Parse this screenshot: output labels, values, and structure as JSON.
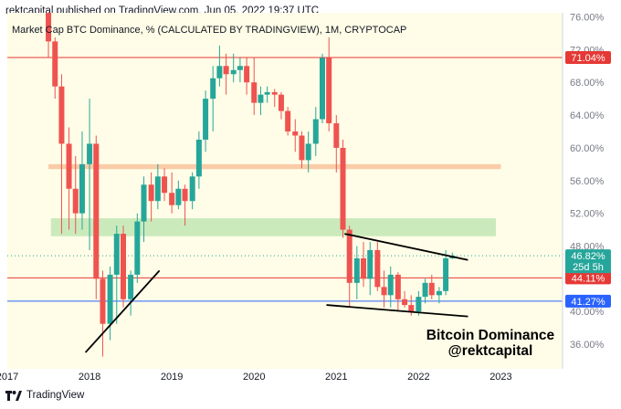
{
  "header": {
    "publisher_line": "rektcapital published on TradingView.com, Jun 05, 2022 19:37 UTC"
  },
  "footer": {
    "brand": "TradingView",
    "logo_icon": "tradingview-logo-icon"
  },
  "colors": {
    "up": "#26a69a",
    "down": "#ef5350",
    "bg": "#fffde7",
    "red_line": "#e53935",
    "blue_line": "#2962ff",
    "orange_zone": "#f8c6a0",
    "green_zone": "#c5e8b7",
    "price_green": "#26a69a"
  },
  "chart_data": {
    "type": "candlestick",
    "title": "Market Cap BTC Dominance, % (CALCULATED BY TRADINGVIEW), 1M, CRYPTOCAP",
    "annotation": [
      "Bitcoin Dominance",
      "@rektcapital"
    ],
    "x_ticks": [
      "2017",
      "2018",
      "2019",
      "2020",
      "2021",
      "2022",
      "2023"
    ],
    "x_tick_t": [
      2017.0,
      2018.0,
      2019.0,
      2020.0,
      2021.0,
      2022.0,
      2023.0
    ],
    "x_range": [
      2017.0,
      2023.75
    ],
    "y_ticks": [
      36,
      40,
      44,
      48,
      52,
      56,
      60,
      64,
      68,
      72,
      76
    ],
    "y_tick_labels": [
      "36.00%",
      "40.00%",
      "44.00%",
      "48.00%",
      "52.00%",
      "56.00%",
      "60.00%",
      "64.00%",
      "68.00%",
      "72.00%",
      "76.00%"
    ],
    "y_range": [
      33.0,
      76.5
    ],
    "horizontal_lines": [
      {
        "name": "resistance-71",
        "value": 71.04,
        "label": "71.04%",
        "color": "red"
      },
      {
        "name": "level-44",
        "value": 44.11,
        "label": "44.11%",
        "color": "red"
      },
      {
        "name": "support-41",
        "value": 41.27,
        "label": "41.27%",
        "color": "blue"
      }
    ],
    "zones": [
      {
        "name": "orange-zone",
        "from": 57.4,
        "to": 58.0,
        "color": "orange"
      },
      {
        "name": "green-zone",
        "from": 49.2,
        "to": 51.4,
        "color": "green"
      }
    ],
    "trendlines": [
      {
        "name": "support-trendline-2018",
        "t1": 2017.95,
        "v1": 35.0,
        "t2": 2018.85,
        "v2": 45.0
      },
      {
        "name": "upper-wedge-line",
        "t1": 2021.1,
        "v1": 49.5,
        "t2": 2022.6,
        "v2": 46.3
      },
      {
        "name": "lower-wedge-line",
        "t1": 2020.88,
        "v1": 40.8,
        "t2": 2022.6,
        "v2": 39.4
      }
    ],
    "last_price": {
      "value": 46.82,
      "label": "46.82%",
      "countdown": "25d 5h"
    },
    "candles": [
      {
        "t": 2017.5,
        "o": 82.0,
        "h": 85.0,
        "l": 71.0,
        "c": 73.0
      },
      {
        "t": 2017.58,
        "o": 73.0,
        "h": 73.5,
        "l": 66.0,
        "c": 67.5
      },
      {
        "t": 2017.66,
        "o": 67.5,
        "h": 69.0,
        "l": 49.5,
        "c": 60.5
      },
      {
        "t": 2017.75,
        "o": 60.5,
        "h": 62.5,
        "l": 50.0,
        "c": 55.0
      },
      {
        "t": 2017.83,
        "o": 55.0,
        "h": 59.0,
        "l": 49.5,
        "c": 52.0
      },
      {
        "t": 2017.91,
        "o": 52.0,
        "h": 62.0,
        "l": 50.0,
        "c": 58.0
      },
      {
        "t": 2018.0,
        "o": 58.0,
        "h": 66.0,
        "l": 47.5,
        "c": 60.5
      },
      {
        "t": 2018.08,
        "o": 60.5,
        "h": 61.5,
        "l": 41.5,
        "c": 44.0
      },
      {
        "t": 2018.16,
        "o": 44.0,
        "h": 45.0,
        "l": 34.5,
        "c": 38.5
      },
      {
        "t": 2018.25,
        "o": 38.5,
        "h": 45.5,
        "l": 36.5,
        "c": 44.5
      },
      {
        "t": 2018.33,
        "o": 44.5,
        "h": 50.5,
        "l": 38.5,
        "c": 49.5
      },
      {
        "t": 2018.41,
        "o": 49.5,
        "h": 50.5,
        "l": 40.5,
        "c": 41.5
      },
      {
        "t": 2018.5,
        "o": 41.5,
        "h": 45.0,
        "l": 39.5,
        "c": 44.5
      },
      {
        "t": 2018.58,
        "o": 44.5,
        "h": 52.0,
        "l": 43.5,
        "c": 51.0
      },
      {
        "t": 2018.66,
        "o": 51.0,
        "h": 56.5,
        "l": 48.5,
        "c": 55.5
      },
      {
        "t": 2018.75,
        "o": 55.5,
        "h": 57.0,
        "l": 51.0,
        "c": 53.5
      },
      {
        "t": 2018.83,
        "o": 53.5,
        "h": 58.0,
        "l": 52.5,
        "c": 56.5
      },
      {
        "t": 2018.91,
        "o": 56.5,
        "h": 57.5,
        "l": 53.5,
        "c": 54.5
      },
      {
        "t": 2019.0,
        "o": 54.5,
        "h": 57.0,
        "l": 52.0,
        "c": 53.0
      },
      {
        "t": 2019.08,
        "o": 53.0,
        "h": 56.0,
        "l": 52.5,
        "c": 55.0
      },
      {
        "t": 2019.16,
        "o": 55.0,
        "h": 55.5,
        "l": 50.5,
        "c": 53.5
      },
      {
        "t": 2019.25,
        "o": 53.5,
        "h": 57.0,
        "l": 52.5,
        "c": 56.5
      },
      {
        "t": 2019.33,
        "o": 56.5,
        "h": 62.0,
        "l": 55.0,
        "c": 61.0
      },
      {
        "t": 2019.41,
        "o": 61.0,
        "h": 67.0,
        "l": 59.5,
        "c": 66.0
      },
      {
        "t": 2019.5,
        "o": 66.0,
        "h": 70.0,
        "l": 62.0,
        "c": 68.5
      },
      {
        "t": 2019.58,
        "o": 68.5,
        "h": 72.5,
        "l": 67.5,
        "c": 70.0
      },
      {
        "t": 2019.66,
        "o": 70.0,
        "h": 71.5,
        "l": 66.5,
        "c": 69.0
      },
      {
        "t": 2019.75,
        "o": 69.0,
        "h": 71.5,
        "l": 68.0,
        "c": 69.5
      },
      {
        "t": 2019.83,
        "o": 69.5,
        "h": 71.0,
        "l": 68.0,
        "c": 70.0
      },
      {
        "t": 2019.91,
        "o": 70.0,
        "h": 71.0,
        "l": 66.5,
        "c": 68.0
      },
      {
        "t": 2020.0,
        "o": 68.0,
        "h": 71.0,
        "l": 64.0,
        "c": 65.5
      },
      {
        "t": 2020.08,
        "o": 65.5,
        "h": 67.5,
        "l": 64.0,
        "c": 66.5
      },
      {
        "t": 2020.16,
        "o": 66.5,
        "h": 67.5,
        "l": 65.5,
        "c": 66.8
      },
      {
        "t": 2020.25,
        "o": 66.8,
        "h": 67.2,
        "l": 65.0,
        "c": 66.5
      },
      {
        "t": 2020.33,
        "o": 66.5,
        "h": 66.8,
        "l": 63.5,
        "c": 64.5
      },
      {
        "t": 2020.41,
        "o": 64.5,
        "h": 65.0,
        "l": 61.5,
        "c": 62.0
      },
      {
        "t": 2020.5,
        "o": 62.0,
        "h": 63.5,
        "l": 59.5,
        "c": 61.5
      },
      {
        "t": 2020.58,
        "o": 61.5,
        "h": 62.0,
        "l": 57.5,
        "c": 58.5
      },
      {
        "t": 2020.66,
        "o": 58.5,
        "h": 62.0,
        "l": 57.0,
        "c": 60.5
      },
      {
        "t": 2020.75,
        "o": 60.5,
        "h": 65.0,
        "l": 59.0,
        "c": 63.5
      },
      {
        "t": 2020.83,
        "o": 63.5,
        "h": 71.5,
        "l": 63.0,
        "c": 71.0
      },
      {
        "t": 2020.91,
        "o": 71.0,
        "h": 73.5,
        "l": 62.0,
        "c": 63.0
      },
      {
        "t": 2021.0,
        "o": 63.0,
        "h": 64.0,
        "l": 57.0,
        "c": 60.0
      },
      {
        "t": 2021.08,
        "o": 60.0,
        "h": 61.0,
        "l": 49.0,
        "c": 50.0
      },
      {
        "t": 2021.16,
        "o": 50.0,
        "h": 50.5,
        "l": 40.5,
        "c": 43.5
      },
      {
        "t": 2021.25,
        "o": 43.5,
        "h": 48.0,
        "l": 41.5,
        "c": 46.5
      },
      {
        "t": 2021.33,
        "o": 46.5,
        "h": 48.5,
        "l": 43.0,
        "c": 44.0
      },
      {
        "t": 2021.41,
        "o": 44.0,
        "h": 48.5,
        "l": 42.0,
        "c": 47.5
      },
      {
        "t": 2021.5,
        "o": 47.5,
        "h": 48.5,
        "l": 42.5,
        "c": 43.0
      },
      {
        "t": 2021.58,
        "o": 43.0,
        "h": 45.0,
        "l": 40.5,
        "c": 42.0
      },
      {
        "t": 2021.66,
        "o": 42.0,
        "h": 45.5,
        "l": 40.5,
        "c": 44.5
      },
      {
        "t": 2021.75,
        "o": 44.5,
        "h": 44.8,
        "l": 40.0,
        "c": 41.5
      },
      {
        "t": 2021.83,
        "o": 41.5,
        "h": 42.5,
        "l": 40.5,
        "c": 40.8
      },
      {
        "t": 2021.91,
        "o": 40.8,
        "h": 42.0,
        "l": 39.5,
        "c": 40.0
      },
      {
        "t": 2022.0,
        "o": 40.0,
        "h": 42.5,
        "l": 39.5,
        "c": 41.8
      },
      {
        "t": 2022.08,
        "o": 41.8,
        "h": 44.0,
        "l": 41.0,
        "c": 43.5
      },
      {
        "t": 2022.16,
        "o": 43.5,
        "h": 44.5,
        "l": 41.5,
        "c": 42.0
      },
      {
        "t": 2022.25,
        "o": 42.0,
        "h": 43.0,
        "l": 41.0,
        "c": 42.5
      },
      {
        "t": 2022.33,
        "o": 42.5,
        "h": 47.5,
        "l": 42.0,
        "c": 46.5
      },
      {
        "t": 2022.41,
        "o": 46.5,
        "h": 47.2,
        "l": 46.4,
        "c": 46.82
      }
    ]
  }
}
